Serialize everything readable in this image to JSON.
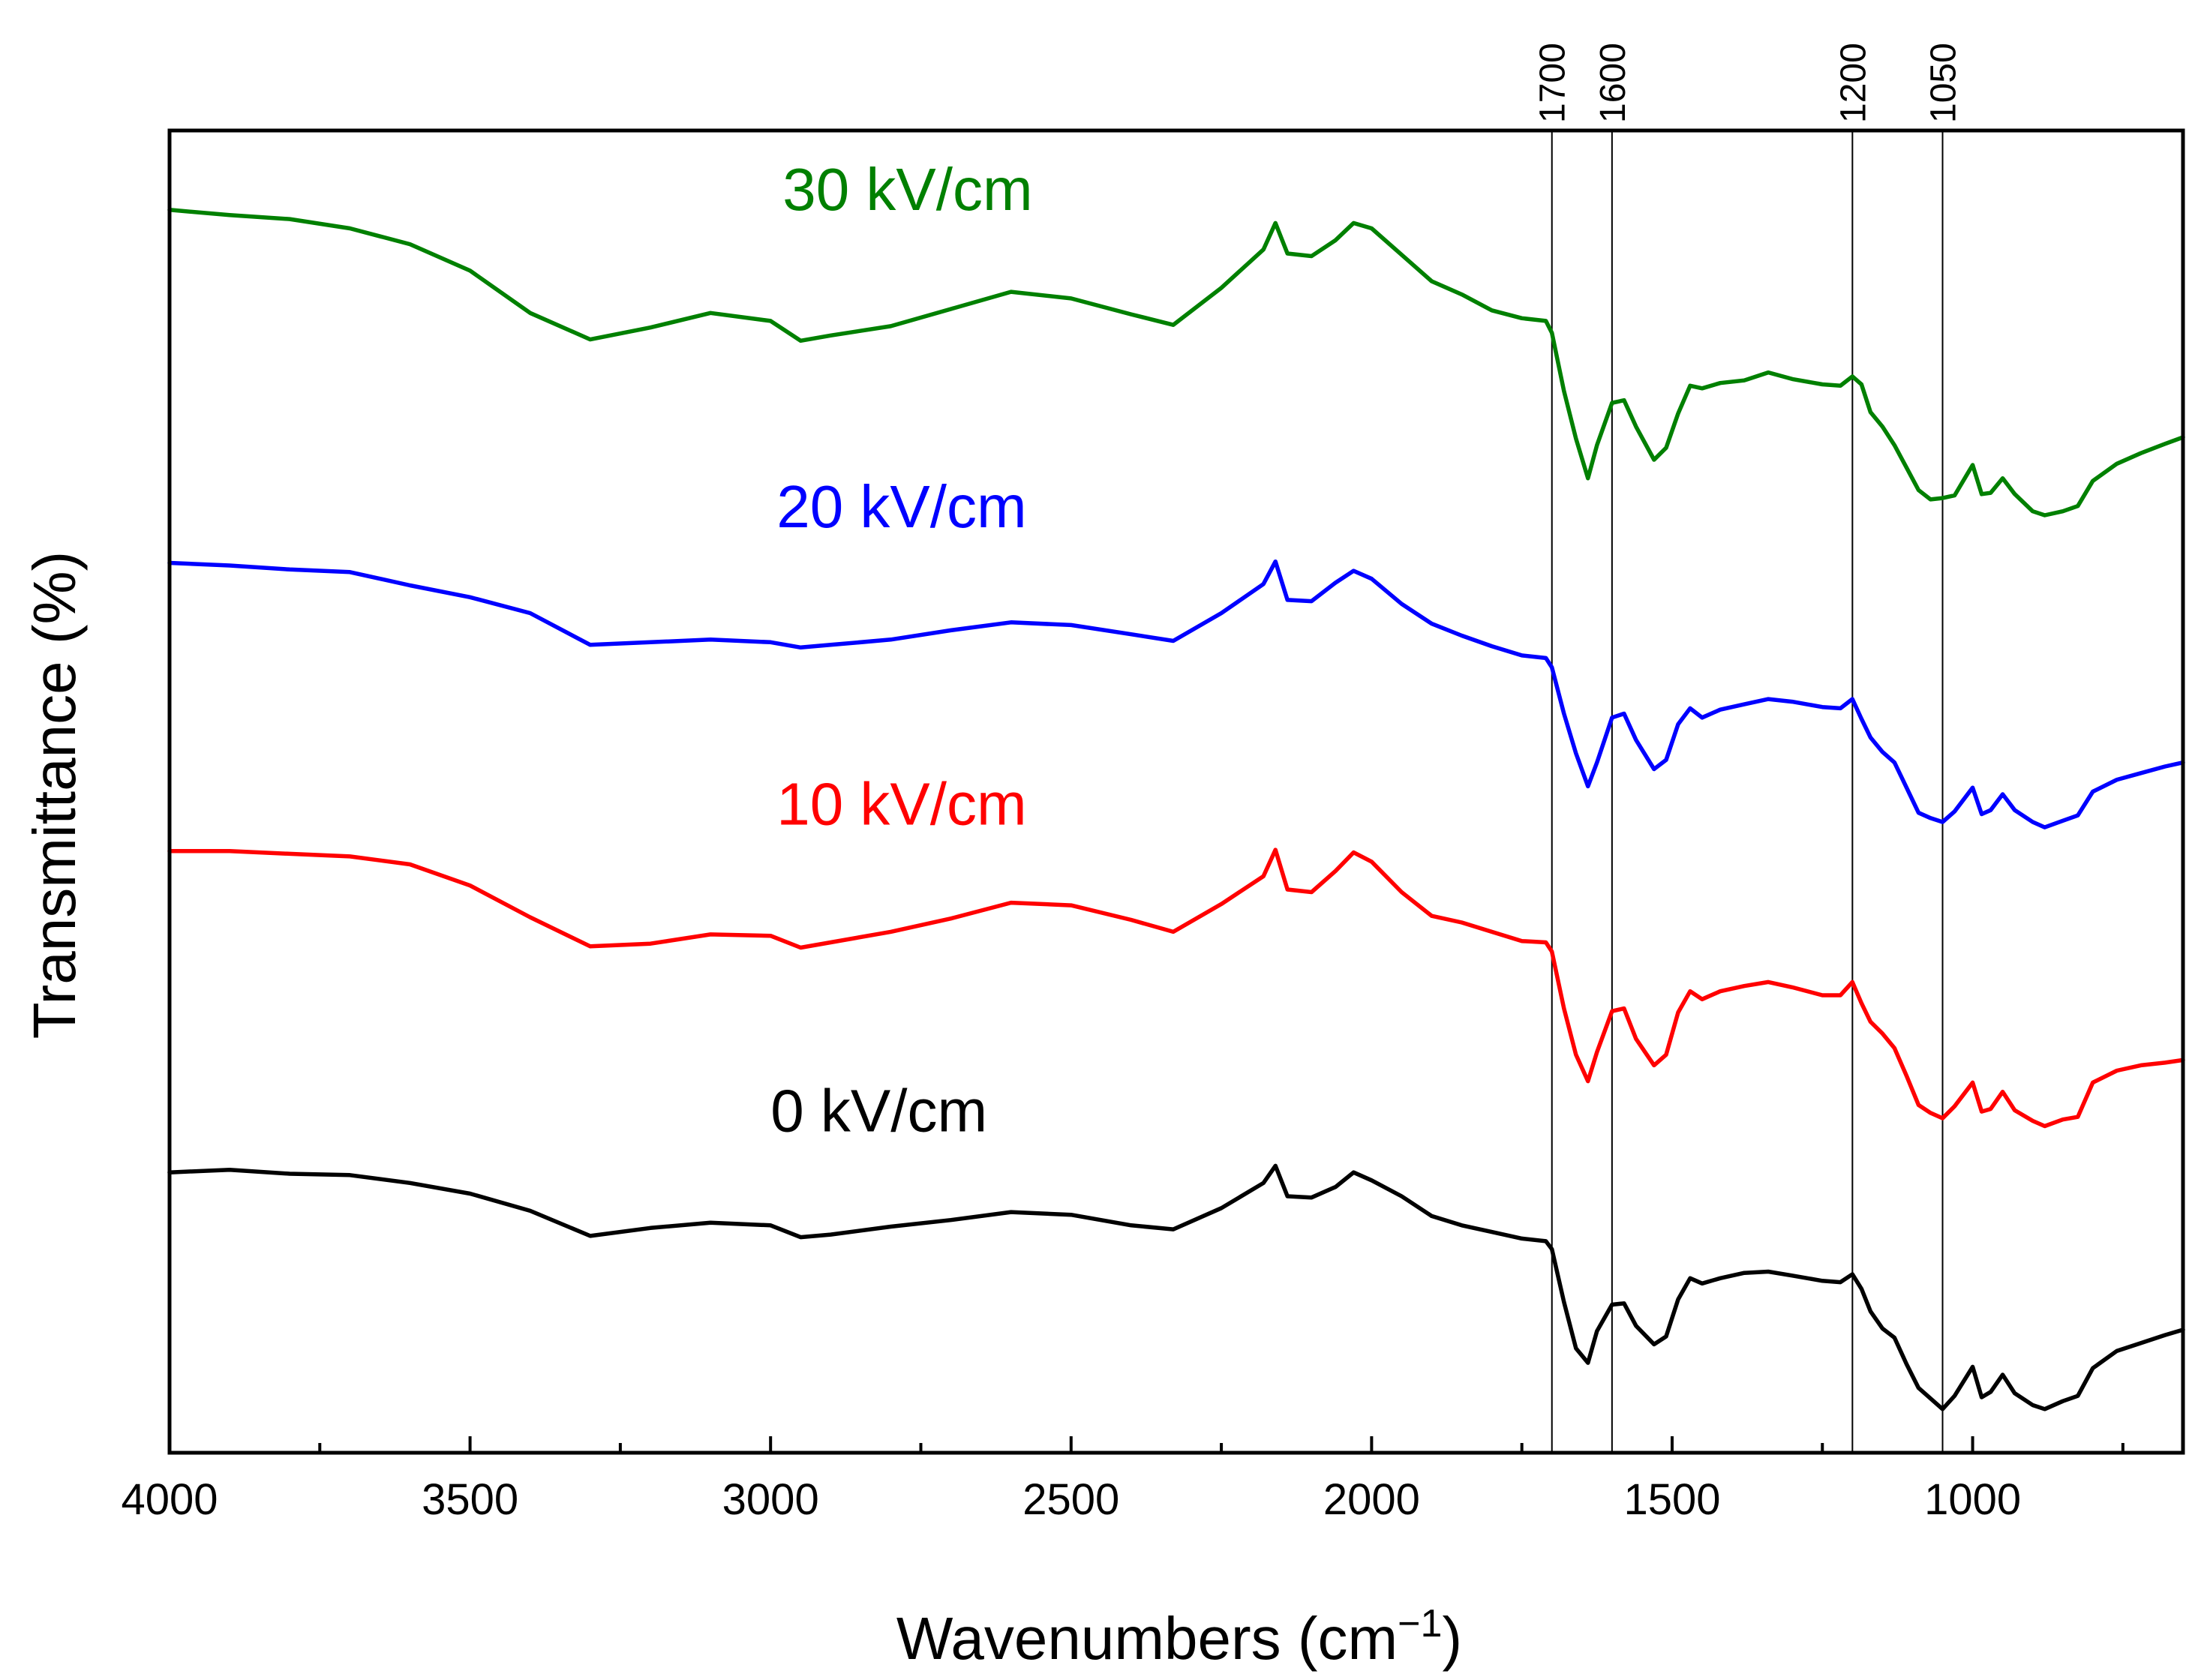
{
  "chart_data": {
    "type": "line",
    "title": "",
    "xlabel": "Wavenumbers (cm",
    "xlabel_superscript": "−1",
    "xlabel_suffix": ")",
    "ylabel": "Transmittance (%)",
    "xlim": [
      4000,
      650
    ],
    "x_reversed": true,
    "yticks_shown": false,
    "grid": false,
    "xticks": [
      4000,
      3500,
      3000,
      2500,
      2000,
      1500,
      1000
    ],
    "xtick_labels": [
      "4000",
      "3500",
      "3000",
      "2500",
      "2000",
      "1500",
      "1000"
    ],
    "reference_lines": [
      {
        "x": 1700,
        "label": "1700"
      },
      {
        "x": 1600,
        "label": "1600"
      },
      {
        "x": 1200,
        "label": "1200"
      },
      {
        "x": 1050,
        "label": "1050"
      }
    ],
    "ylim": [
      0,
      100
    ],
    "series": [
      {
        "name": "30 kV/cm",
        "color": "#008000",
        "label_x": 2980,
        "label_y": 94,
        "points": [
          [
            4000,
            94
          ],
          [
            3900,
            93.6
          ],
          [
            3800,
            93.3
          ],
          [
            3700,
            92.6
          ],
          [
            3600,
            91.4
          ],
          [
            3500,
            89.4
          ],
          [
            3400,
            86.2
          ],
          [
            3300,
            84.2
          ],
          [
            3200,
            85.1
          ],
          [
            3100,
            86.2
          ],
          [
            3000,
            85.6
          ],
          [
            2950,
            84.1
          ],
          [
            2900,
            84.5
          ],
          [
            2800,
            85.2
          ],
          [
            2700,
            86.5
          ],
          [
            2600,
            87.8
          ],
          [
            2500,
            87.3
          ],
          [
            2400,
            86.1
          ],
          [
            2330,
            85.3
          ],
          [
            2250,
            88.1
          ],
          [
            2180,
            91
          ],
          [
            2160,
            93
          ],
          [
            2140,
            90.7
          ],
          [
            2100,
            90.5
          ],
          [
            2060,
            91.7
          ],
          [
            2030,
            93
          ],
          [
            2000,
            92.6
          ],
          [
            1950,
            90.6
          ],
          [
            1900,
            88.6
          ],
          [
            1850,
            87.6
          ],
          [
            1800,
            86.4
          ],
          [
            1750,
            85.8
          ],
          [
            1710,
            85.6
          ],
          [
            1700,
            84.7
          ],
          [
            1680,
            80.3
          ],
          [
            1660,
            76.7
          ],
          [
            1640,
            73.7
          ],
          [
            1625,
            76.2
          ],
          [
            1600,
            79.4
          ],
          [
            1580,
            79.6
          ],
          [
            1560,
            77.6
          ],
          [
            1530,
            75.1
          ],
          [
            1510,
            76
          ],
          [
            1490,
            78.6
          ],
          [
            1470,
            80.7
          ],
          [
            1450,
            80.5
          ],
          [
            1420,
            80.9
          ],
          [
            1380,
            81.1
          ],
          [
            1340,
            81.7
          ],
          [
            1300,
            81.2
          ],
          [
            1250,
            80.8
          ],
          [
            1220,
            80.7
          ],
          [
            1200,
            81.4
          ],
          [
            1185,
            80.8
          ],
          [
            1170,
            78.7
          ],
          [
            1150,
            77.6
          ],
          [
            1130,
            76.2
          ],
          [
            1110,
            74.5
          ],
          [
            1090,
            72.8
          ],
          [
            1070,
            72.1
          ],
          [
            1050,
            72.2
          ],
          [
            1030,
            72.4
          ],
          [
            1000,
            74.7
          ],
          [
            985,
            72.5
          ],
          [
            970,
            72.6
          ],
          [
            950,
            73.7
          ],
          [
            930,
            72.5
          ],
          [
            900,
            71.2
          ],
          [
            880,
            70.9
          ],
          [
            850,
            71.2
          ],
          [
            825,
            71.6
          ],
          [
            800,
            73.5
          ],
          [
            760,
            74.8
          ],
          [
            720,
            75.6
          ],
          [
            680,
            76.3
          ],
          [
            650,
            76.8
          ]
        ]
      },
      {
        "name": "20 kV/cm",
        "color": "#0000ff",
        "label_x": 2990,
        "label_y": 70,
        "points": [
          [
            4000,
            67.3
          ],
          [
            3900,
            67.1
          ],
          [
            3800,
            66.8
          ],
          [
            3700,
            66.6
          ],
          [
            3600,
            65.6
          ],
          [
            3500,
            64.7
          ],
          [
            3400,
            63.5
          ],
          [
            3300,
            61.1
          ],
          [
            3200,
            61.3
          ],
          [
            3100,
            61.5
          ],
          [
            3000,
            61.3
          ],
          [
            2950,
            60.9
          ],
          [
            2900,
            61.1
          ],
          [
            2800,
            61.5
          ],
          [
            2700,
            62.2
          ],
          [
            2600,
            62.8
          ],
          [
            2500,
            62.6
          ],
          [
            2400,
            61.9
          ],
          [
            2330,
            61.4
          ],
          [
            2250,
            63.5
          ],
          [
            2180,
            65.7
          ],
          [
            2160,
            67.4
          ],
          [
            2140,
            64.5
          ],
          [
            2100,
            64.4
          ],
          [
            2060,
            65.8
          ],
          [
            2030,
            66.7
          ],
          [
            2000,
            66.1
          ],
          [
            1950,
            64.2
          ],
          [
            1900,
            62.7
          ],
          [
            1850,
            61.8
          ],
          [
            1800,
            61
          ],
          [
            1750,
            60.3
          ],
          [
            1710,
            60.1
          ],
          [
            1700,
            59.4
          ],
          [
            1680,
            55.9
          ],
          [
            1660,
            52.9
          ],
          [
            1640,
            50.4
          ],
          [
            1625,
            52.2
          ],
          [
            1600,
            55.6
          ],
          [
            1580,
            55.9
          ],
          [
            1560,
            53.9
          ],
          [
            1530,
            51.7
          ],
          [
            1510,
            52.4
          ],
          [
            1490,
            55.1
          ],
          [
            1470,
            56.3
          ],
          [
            1450,
            55.6
          ],
          [
            1420,
            56.2
          ],
          [
            1380,
            56.6
          ],
          [
            1340,
            57
          ],
          [
            1300,
            56.8
          ],
          [
            1250,
            56.4
          ],
          [
            1220,
            56.3
          ],
          [
            1200,
            57
          ],
          [
            1185,
            55.5
          ],
          [
            1170,
            54.1
          ],
          [
            1150,
            53
          ],
          [
            1130,
            52.2
          ],
          [
            1110,
            50.3
          ],
          [
            1090,
            48.4
          ],
          [
            1070,
            48
          ],
          [
            1050,
            47.7
          ],
          [
            1030,
            48.5
          ],
          [
            1000,
            50.3
          ],
          [
            985,
            48.3
          ],
          [
            970,
            48.6
          ],
          [
            950,
            49.8
          ],
          [
            930,
            48.6
          ],
          [
            900,
            47.7
          ],
          [
            880,
            47.3
          ],
          [
            850,
            47.8
          ],
          [
            825,
            48.2
          ],
          [
            800,
            50
          ],
          [
            760,
            50.9
          ],
          [
            720,
            51.4
          ],
          [
            680,
            51.9
          ],
          [
            650,
            52.2
          ]
        ]
      },
      {
        "name": "10 kV/cm",
        "color": "#ff0000",
        "label_x": 2990,
        "label_y": 47.5,
        "points": [
          [
            4000,
            45.5
          ],
          [
            3900,
            45.5
          ],
          [
            3800,
            45.3
          ],
          [
            3700,
            45.1
          ],
          [
            3600,
            44.5
          ],
          [
            3500,
            42.9
          ],
          [
            3400,
            40.5
          ],
          [
            3300,
            38.3
          ],
          [
            3200,
            38.5
          ],
          [
            3100,
            39.2
          ],
          [
            3000,
            39.1
          ],
          [
            2950,
            38.2
          ],
          [
            2900,
            38.6
          ],
          [
            2800,
            39.4
          ],
          [
            2700,
            40.4
          ],
          [
            2600,
            41.6
          ],
          [
            2500,
            41.4
          ],
          [
            2400,
            40.3
          ],
          [
            2330,
            39.4
          ],
          [
            2250,
            41.5
          ],
          [
            2180,
            43.6
          ],
          [
            2160,
            45.6
          ],
          [
            2140,
            42.6
          ],
          [
            2100,
            42.4
          ],
          [
            2060,
            44
          ],
          [
            2030,
            45.4
          ],
          [
            2000,
            44.7
          ],
          [
            1950,
            42.4
          ],
          [
            1900,
            40.6
          ],
          [
            1850,
            40.1
          ],
          [
            1800,
            39.4
          ],
          [
            1750,
            38.7
          ],
          [
            1710,
            38.6
          ],
          [
            1700,
            37.9
          ],
          [
            1680,
            33.6
          ],
          [
            1660,
            30.1
          ],
          [
            1640,
            28.1
          ],
          [
            1625,
            30.3
          ],
          [
            1600,
            33.4
          ],
          [
            1580,
            33.6
          ],
          [
            1560,
            31.3
          ],
          [
            1530,
            29.3
          ],
          [
            1510,
            30.1
          ],
          [
            1490,
            33.3
          ],
          [
            1470,
            34.9
          ],
          [
            1450,
            34.3
          ],
          [
            1420,
            34.9
          ],
          [
            1380,
            35.3
          ],
          [
            1340,
            35.6
          ],
          [
            1300,
            35.2
          ],
          [
            1250,
            34.6
          ],
          [
            1220,
            34.6
          ],
          [
            1200,
            35.6
          ],
          [
            1185,
            34
          ],
          [
            1170,
            32.6
          ],
          [
            1150,
            31.7
          ],
          [
            1130,
            30.6
          ],
          [
            1110,
            28.5
          ],
          [
            1090,
            26.3
          ],
          [
            1070,
            25.7
          ],
          [
            1050,
            25.3
          ],
          [
            1030,
            26.2
          ],
          [
            1000,
            28
          ],
          [
            985,
            25.8
          ],
          [
            970,
            26
          ],
          [
            950,
            27.3
          ],
          [
            930,
            25.9
          ],
          [
            900,
            25.1
          ],
          [
            880,
            24.7
          ],
          [
            850,
            25.2
          ],
          [
            825,
            25.4
          ],
          [
            800,
            28
          ],
          [
            760,
            28.9
          ],
          [
            720,
            29.3
          ],
          [
            680,
            29.5
          ],
          [
            650,
            29.7
          ]
        ]
      },
      {
        "name": "0 kV/cm",
        "color": "#000000",
        "label_x": 3000,
        "label_y": 24.3,
        "points": [
          [
            4000,
            21.2
          ],
          [
            3900,
            21.4
          ],
          [
            3800,
            21.1
          ],
          [
            3700,
            21
          ],
          [
            3600,
            20.4
          ],
          [
            3500,
            19.6
          ],
          [
            3400,
            18.3
          ],
          [
            3300,
            16.4
          ],
          [
            3200,
            17
          ],
          [
            3100,
            17.4
          ],
          [
            3000,
            17.2
          ],
          [
            2950,
            16.3
          ],
          [
            2900,
            16.5
          ],
          [
            2800,
            17.1
          ],
          [
            2700,
            17.6
          ],
          [
            2600,
            18.2
          ],
          [
            2500,
            18
          ],
          [
            2400,
            17.2
          ],
          [
            2330,
            16.9
          ],
          [
            2250,
            18.5
          ],
          [
            2180,
            20.4
          ],
          [
            2160,
            21.7
          ],
          [
            2140,
            19.4
          ],
          [
            2100,
            19.3
          ],
          [
            2060,
            20.1
          ],
          [
            2030,
            21.2
          ],
          [
            2000,
            20.6
          ],
          [
            1950,
            19.4
          ],
          [
            1900,
            17.9
          ],
          [
            1850,
            17.2
          ],
          [
            1800,
            16.7
          ],
          [
            1750,
            16.2
          ],
          [
            1710,
            16
          ],
          [
            1700,
            15.4
          ],
          [
            1680,
            11.4
          ],
          [
            1660,
            7.9
          ],
          [
            1640,
            6.8
          ],
          [
            1625,
            9.2
          ],
          [
            1600,
            11.2
          ],
          [
            1580,
            11.3
          ],
          [
            1560,
            9.6
          ],
          [
            1530,
            8.2
          ],
          [
            1510,
            8.8
          ],
          [
            1490,
            11.6
          ],
          [
            1470,
            13.2
          ],
          [
            1450,
            12.8
          ],
          [
            1420,
            13.2
          ],
          [
            1380,
            13.6
          ],
          [
            1340,
            13.7
          ],
          [
            1300,
            13.4
          ],
          [
            1250,
            13
          ],
          [
            1220,
            12.9
          ],
          [
            1200,
            13.5
          ],
          [
            1185,
            12.4
          ],
          [
            1170,
            10.7
          ],
          [
            1150,
            9.4
          ],
          [
            1130,
            8.7
          ],
          [
            1110,
            6.7
          ],
          [
            1090,
            4.9
          ],
          [
            1070,
            4.1
          ],
          [
            1050,
            3.3
          ],
          [
            1030,
            4.3
          ],
          [
            1000,
            6.5
          ],
          [
            985,
            4.2
          ],
          [
            970,
            4.6
          ],
          [
            950,
            5.9
          ],
          [
            930,
            4.5
          ],
          [
            900,
            3.6
          ],
          [
            880,
            3.3
          ],
          [
            850,
            3.9
          ],
          [
            825,
            4.3
          ],
          [
            800,
            6.4
          ],
          [
            760,
            7.7
          ],
          [
            720,
            8.3
          ],
          [
            680,
            8.9
          ],
          [
            650,
            9.3
          ]
        ]
      }
    ]
  }
}
